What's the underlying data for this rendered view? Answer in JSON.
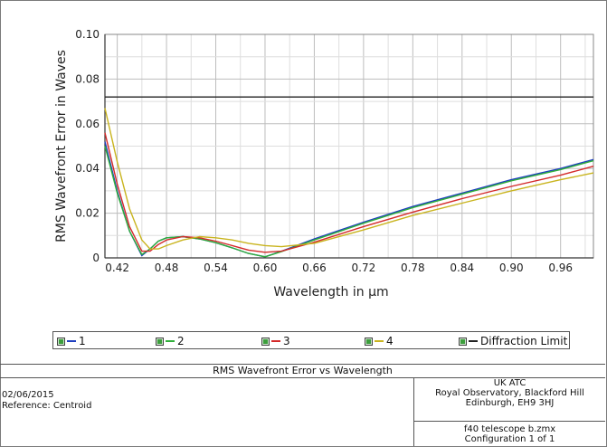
{
  "chart_data": {
    "type": "line",
    "title": "RMS Wavefront Error vs Wavelength",
    "xlabel": "Wavelength in µm",
    "ylabel": "RMS Wavefront Error in Waves",
    "xlim": [
      0.405,
      1.0
    ],
    "ylim": [
      0,
      0.1
    ],
    "x_ticks": [
      "0.42",
      "0.48",
      "0.54",
      "0.60",
      "0.66",
      "0.72",
      "0.78",
      "0.84",
      "0.90",
      "0.96"
    ],
    "y_ticks": [
      "0",
      "0.02",
      "0.04",
      "0.06",
      "0.08",
      "0.10"
    ],
    "grid": true,
    "legend_position": "bottom",
    "series": [
      {
        "name": "1",
        "color": "#1f3fbf",
        "x": [
          0.405,
          0.42,
          0.435,
          0.45,
          0.46,
          0.47,
          0.48,
          0.5,
          0.52,
          0.54,
          0.56,
          0.58,
          0.6,
          0.62,
          0.66,
          0.72,
          0.78,
          0.84,
          0.9,
          0.96,
          1.0
        ],
        "y": [
          0.052,
          0.03,
          0.012,
          0.001,
          0.004,
          0.0075,
          0.009,
          0.0095,
          0.0085,
          0.0068,
          0.0045,
          0.002,
          0.0005,
          0.003,
          0.0085,
          0.016,
          0.023,
          0.029,
          0.035,
          0.04,
          0.044
        ]
      },
      {
        "name": "2",
        "color": "#2fae3a",
        "x": [
          0.405,
          0.42,
          0.435,
          0.45,
          0.46,
          0.47,
          0.48,
          0.5,
          0.52,
          0.54,
          0.56,
          0.58,
          0.6,
          0.62,
          0.66,
          0.72,
          0.78,
          0.84,
          0.9,
          0.96,
          1.0
        ],
        "y": [
          0.05,
          0.029,
          0.012,
          0.0015,
          0.004,
          0.0075,
          0.009,
          0.0095,
          0.0085,
          0.0068,
          0.0045,
          0.002,
          0.0005,
          0.0028,
          0.008,
          0.0155,
          0.0225,
          0.0285,
          0.0345,
          0.0395,
          0.0435
        ]
      },
      {
        "name": "3",
        "color": "#d42a2a",
        "x": [
          0.405,
          0.42,
          0.435,
          0.45,
          0.46,
          0.47,
          0.48,
          0.5,
          0.52,
          0.54,
          0.56,
          0.58,
          0.6,
          0.62,
          0.66,
          0.72,
          0.78,
          0.84,
          0.9,
          0.96,
          1.0
        ],
        "y": [
          0.056,
          0.033,
          0.014,
          0.003,
          0.003,
          0.006,
          0.008,
          0.0095,
          0.009,
          0.0075,
          0.0055,
          0.0035,
          0.0025,
          0.003,
          0.007,
          0.014,
          0.0205,
          0.0265,
          0.032,
          0.037,
          0.041
        ]
      },
      {
        "name": "4",
        "color": "#c9b41e",
        "x": [
          0.405,
          0.42,
          0.435,
          0.45,
          0.46,
          0.47,
          0.48,
          0.5,
          0.52,
          0.54,
          0.56,
          0.58,
          0.6,
          0.62,
          0.66,
          0.72,
          0.78,
          0.84,
          0.9,
          0.96,
          1.0
        ],
        "y": [
          0.067,
          0.043,
          0.022,
          0.008,
          0.004,
          0.004,
          0.0055,
          0.008,
          0.0095,
          0.009,
          0.008,
          0.0065,
          0.0055,
          0.005,
          0.0065,
          0.0125,
          0.019,
          0.0245,
          0.03,
          0.035,
          0.038
        ]
      },
      {
        "name": "Diffraction Limit",
        "color": "#222222",
        "x": [
          0.405,
          1.0
        ],
        "y": [
          0.072,
          0.072
        ]
      }
    ]
  },
  "footer": {
    "title": "RMS Wavefront Error vs Wavelength",
    "date": "02/06/2015",
    "reference": "Reference: Centroid",
    "org_line1": "UK ATC",
    "org_line2": "Royal Observatory, Blackford Hill",
    "org_line3": "Edinburgh, EH9 3HJ",
    "file": "f40 telescope b.zmx",
    "config": "Configuration 1 of 1"
  }
}
